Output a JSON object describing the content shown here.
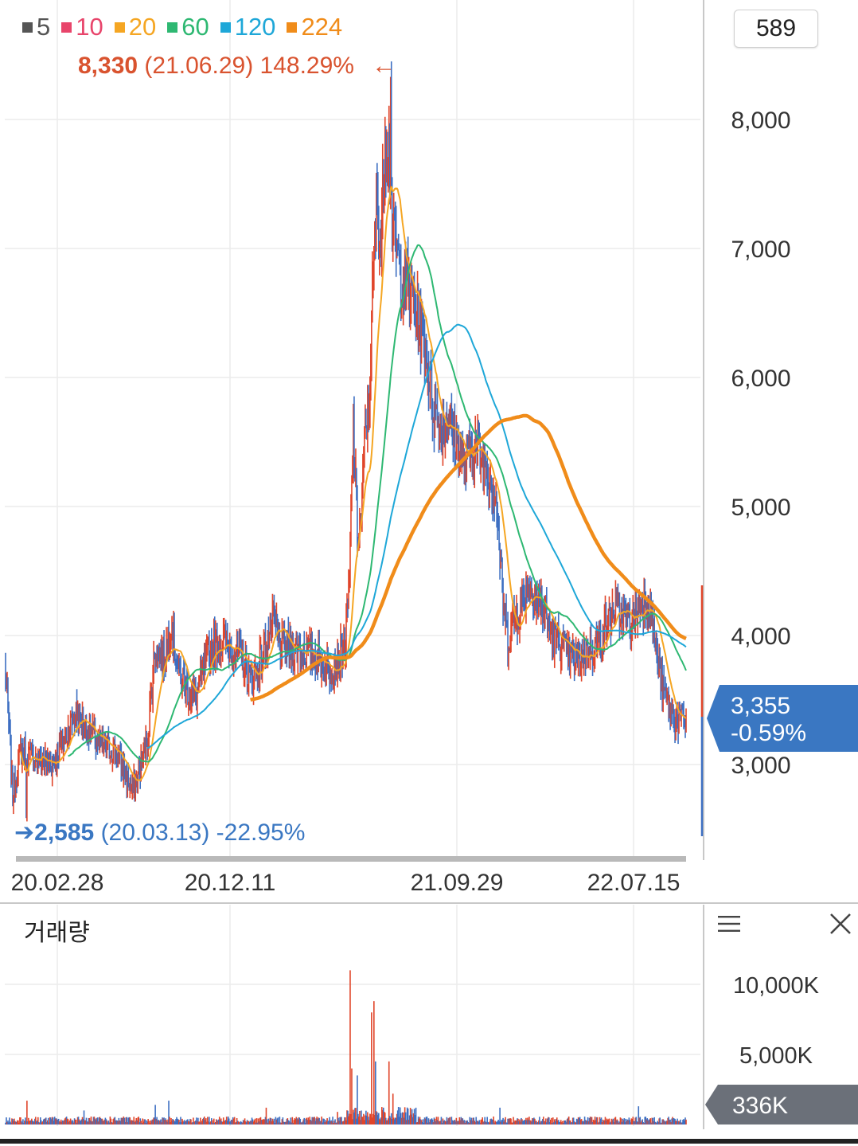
{
  "legend": [
    {
      "label": "5",
      "color": "#555555"
    },
    {
      "label": "10",
      "color": "#e8456b"
    },
    {
      "label": "20",
      "color": "#f5a623"
    },
    {
      "label": "60",
      "color": "#2eb872"
    },
    {
      "label": "120",
      "color": "#1ea7d8"
    },
    {
      "label": "224",
      "color": "#f08c1a"
    }
  ],
  "high": {
    "value": "8,330",
    "rest": "(21.06.29) 148.29%",
    "arrow": "←"
  },
  "low": {
    "arrow": "➔",
    "value": "2,585",
    "rest": "(20.03.13) -22.95%"
  },
  "count_box": "589",
  "current_price": {
    "price": "3,355",
    "change": "-0.59%"
  },
  "volume_panel": {
    "title": "거래량",
    "current": "336K",
    "menu_icon": "hamburger-menu-icon",
    "close_icon": "close-icon"
  },
  "colors": {
    "up": "#e0452a",
    "down": "#3d6fc2",
    "badge_blue": "#3a77c2",
    "badge_gray": "#6b7079"
  },
  "chart_data": [
    {
      "type": "candlestick",
      "x_labels": [
        "20.02.28",
        "20.12.11",
        "21.09.29",
        "22.07.15"
      ],
      "y_ticks": [
        "8,000",
        "7,000",
        "6,000",
        "5,000",
        "4,000",
        "3,000"
      ],
      "ylim": [
        2300,
        8700
      ],
      "grid": true,
      "close_series": {
        "anchors": [
          [
            0,
            3800
          ],
          [
            5,
            3300
          ],
          [
            10,
            2750
          ],
          [
            20,
            3100
          ],
          [
            40,
            3050
          ],
          [
            60,
            3000
          ],
          [
            90,
            3400
          ],
          [
            120,
            3150
          ],
          [
            140,
            3100
          ],
          [
            160,
            2800
          ],
          [
            170,
            2950
          ],
          [
            180,
            3200
          ],
          [
            190,
            3900
          ],
          [
            200,
            3800
          ],
          [
            210,
            4100
          ],
          [
            220,
            3700
          ],
          [
            230,
            3600
          ],
          [
            240,
            3500
          ],
          [
            250,
            3700
          ],
          [
            260,
            3900
          ],
          [
            280,
            3950
          ],
          [
            300,
            3800
          ],
          [
            310,
            3650
          ],
          [
            320,
            3750
          ],
          [
            330,
            3950
          ],
          [
            340,
            4100
          ],
          [
            350,
            3900
          ],
          [
            370,
            3900
          ],
          [
            390,
            3850
          ],
          [
            410,
            3750
          ],
          [
            420,
            3800
          ],
          [
            430,
            3950
          ],
          [
            435,
            4450
          ],
          [
            440,
            5600
          ],
          [
            445,
            4800
          ],
          [
            450,
            4900
          ],
          [
            455,
            5600
          ],
          [
            460,
            5800
          ],
          [
            465,
            6800
          ],
          [
            470,
            7400
          ],
          [
            475,
            7000
          ],
          [
            480,
            7900
          ],
          [
            485,
            7800
          ],
          [
            490,
            7100
          ],
          [
            495,
            7000
          ],
          [
            500,
            6800
          ],
          [
            510,
            6700
          ],
          [
            520,
            6500
          ],
          [
            530,
            6300
          ],
          [
            540,
            5800
          ],
          [
            550,
            5600
          ],
          [
            560,
            5700
          ],
          [
            570,
            5500
          ],
          [
            580,
            5300
          ],
          [
            590,
            5500
          ],
          [
            600,
            5400
          ],
          [
            610,
            5300
          ],
          [
            620,
            5100
          ],
          [
            625,
            4600
          ],
          [
            630,
            4200
          ],
          [
            635,
            3950
          ],
          [
            640,
            4100
          ],
          [
            650,
            4200
          ],
          [
            660,
            4400
          ],
          [
            670,
            4300
          ],
          [
            680,
            4200
          ],
          [
            690,
            4000
          ],
          [
            700,
            3950
          ],
          [
            710,
            3850
          ],
          [
            720,
            3800
          ],
          [
            730,
            3850
          ],
          [
            740,
            3900
          ],
          [
            750,
            3950
          ],
          [
            760,
            4100
          ],
          [
            770,
            4200
          ],
          [
            780,
            4150
          ],
          [
            790,
            4100
          ],
          [
            800,
            4200
          ],
          [
            810,
            4300
          ],
          [
            815,
            4200
          ],
          [
            820,
            4000
          ],
          [
            830,
            3600
          ],
          [
            840,
            3400
          ],
          [
            850,
            3330
          ],
          [
            860,
            3355
          ]
        ],
        "high_point": {
          "index": 487,
          "value": 8330
        },
        "low_point": {
          "index": 27,
          "value": 2585
        },
        "last_close": 3355
      },
      "moving_averages": [
        "5",
        "10",
        "20",
        "60",
        "120",
        "224"
      ]
    },
    {
      "type": "bar",
      "name": "거래량",
      "y_ticks": [
        "10,000K",
        "5,000K"
      ],
      "ylim": [
        0,
        11500000
      ],
      "last": "336K",
      "spikes": [
        [
          28,
          1700000
        ],
        [
          100,
          1000000
        ],
        [
          190,
          1400000
        ],
        [
          207,
          1700000
        ],
        [
          330,
          1200000
        ],
        [
          420,
          900000
        ],
        [
          436,
          11000000
        ],
        [
          438,
          4000000
        ],
        [
          445,
          3500000
        ],
        [
          463,
          8000000
        ],
        [
          466,
          8800000
        ],
        [
          468,
          4500000
        ],
        [
          485,
          4500000
        ],
        [
          490,
          2200000
        ],
        [
          625,
          1200000
        ],
        [
          800,
          1300000
        ]
      ],
      "baseline": 380000
    }
  ]
}
